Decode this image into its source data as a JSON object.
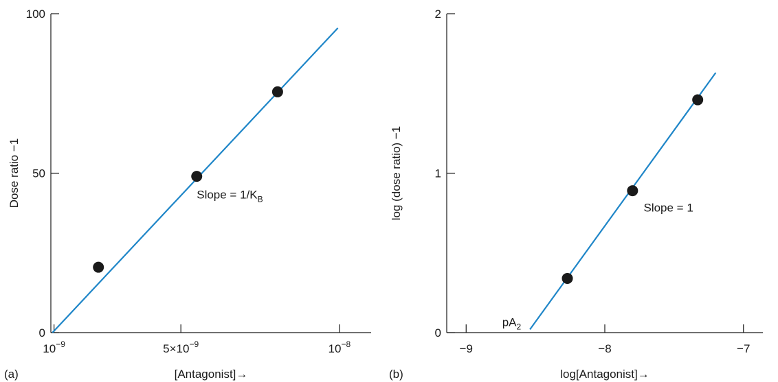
{
  "colors": {
    "fit_line": "#1f86c8",
    "points": "#1a1a1a",
    "axes": "#1a1a1a"
  },
  "chart_data": [
    {
      "panel_label": "(a)",
      "type": "scatter",
      "xlabel": "[Antagonist]→",
      "ylabel": "Dose ratio −1",
      "x_scale": "linear",
      "xlim": [
        9e-10,
        1.1e-08
      ],
      "ylim": [
        0,
        100
      ],
      "x_ticks": [
        {
          "value": 1e-09,
          "label": "10",
          "sup": "−9"
        },
        {
          "value": 5e-09,
          "label": "5×10",
          "sup": "−9"
        },
        {
          "value": 1e-08,
          "label": "10",
          "sup": "−8"
        }
      ],
      "y_ticks": [
        {
          "value": 0,
          "label": "0"
        },
        {
          "value": 50,
          "label": "50"
        },
        {
          "value": 100,
          "label": "100"
        }
      ],
      "points": {
        "x": [
          2.4e-09,
          5.5e-09,
          8.05e-09
        ],
        "y": [
          20.5,
          49,
          75.5
        ]
      },
      "line": {
        "x": [
          9.5e-10,
          9.95e-09
        ],
        "y": [
          0,
          95.5
        ]
      },
      "annotation": {
        "text": "Slope = 1/K",
        "sub": "B",
        "x": 5.5e-09,
        "y": 42
      }
    },
    {
      "panel_label": "(b)",
      "type": "scatter",
      "xlabel": "log[Antagonist]→",
      "ylabel": "log (dose ratio) −1",
      "x_scale": "linear",
      "xlim": [
        -9.14,
        -6.86
      ],
      "ylim": [
        0,
        2
      ],
      "x_ticks": [
        {
          "value": -9,
          "label": "−9"
        },
        {
          "value": -8,
          "label": "−8"
        },
        {
          "value": -7,
          "label": "−7"
        }
      ],
      "y_ticks": [
        {
          "value": 0,
          "label": "0"
        },
        {
          "value": 1,
          "label": "1"
        },
        {
          "value": 2,
          "label": "2"
        }
      ],
      "points": {
        "x": [
          -8.27,
          -7.8,
          -7.33
        ],
        "y": [
          0.34,
          0.89,
          1.46
        ]
      },
      "line": {
        "x": [
          -8.54,
          -7.2
        ],
        "y": [
          0.02,
          1.63
        ]
      },
      "annotation": {
        "text": "Slope = 1",
        "x": -7.72,
        "y": 0.76
      },
      "pA2_label": {
        "text": "pA",
        "sub": "2",
        "x": -8.74,
        "y": 0.04
      }
    }
  ]
}
